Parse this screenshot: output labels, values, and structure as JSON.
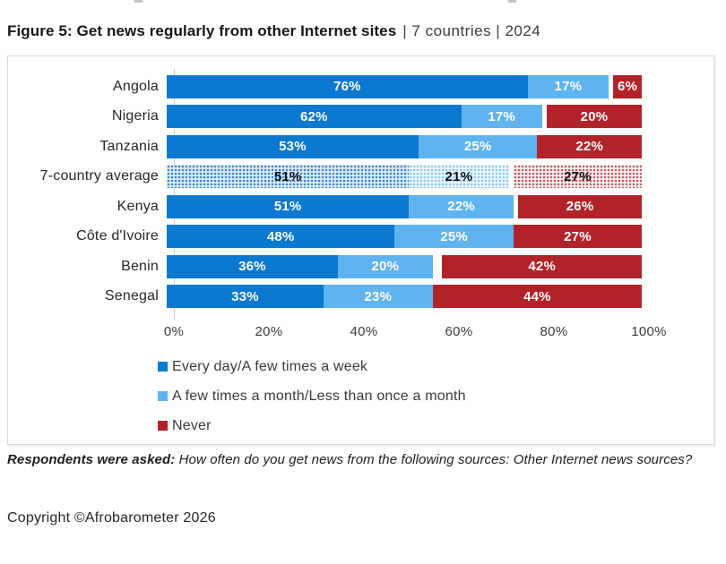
{
  "title": {
    "bold": "Figure 5: Get news regularly from other Internet sites",
    "meta": "| 7 countries | 2024"
  },
  "chart_data": {
    "type": "bar",
    "orientation": "horizontal_stacked",
    "title": "Figure 5: Get news regularly from other Internet sites | 7 countries | 2024",
    "categories": [
      "Angola",
      "Nigeria",
      "Tanzania",
      "7-country average",
      "Kenya",
      "Côte d'Ivoire",
      "Benin",
      "Senegal"
    ],
    "series": [
      {
        "name": "Every day/A few times a week",
        "color": "#0b79cf",
        "values": [
          76,
          62,
          53,
          51,
          51,
          48,
          36,
          33
        ]
      },
      {
        "name": "A few times a month/Less than once a month",
        "color": "#5fb4f0",
        "values": [
          17,
          17,
          25,
          21,
          22,
          25,
          20,
          23
        ]
      },
      {
        "name": "Never",
        "color": "#b02328",
        "values": [
          6,
          20,
          22,
          27,
          26,
          27,
          42,
          44
        ],
        "align": "right"
      }
    ],
    "value_suffix": "%",
    "x_ticks": [
      "0%",
      "20%",
      "40%",
      "60%",
      "80%",
      "100%"
    ],
    "xlim": [
      0,
      100
    ],
    "grid": false,
    "pattern_category": "7-country average",
    "legend_position": "bottom-left"
  },
  "footer": {
    "question_bold": "Respondents were asked:",
    "question_rest": " How often do you get news from the following sources: Other Internet news sources?",
    "copyright": "Copyright ©Afrobarometer 2026"
  }
}
